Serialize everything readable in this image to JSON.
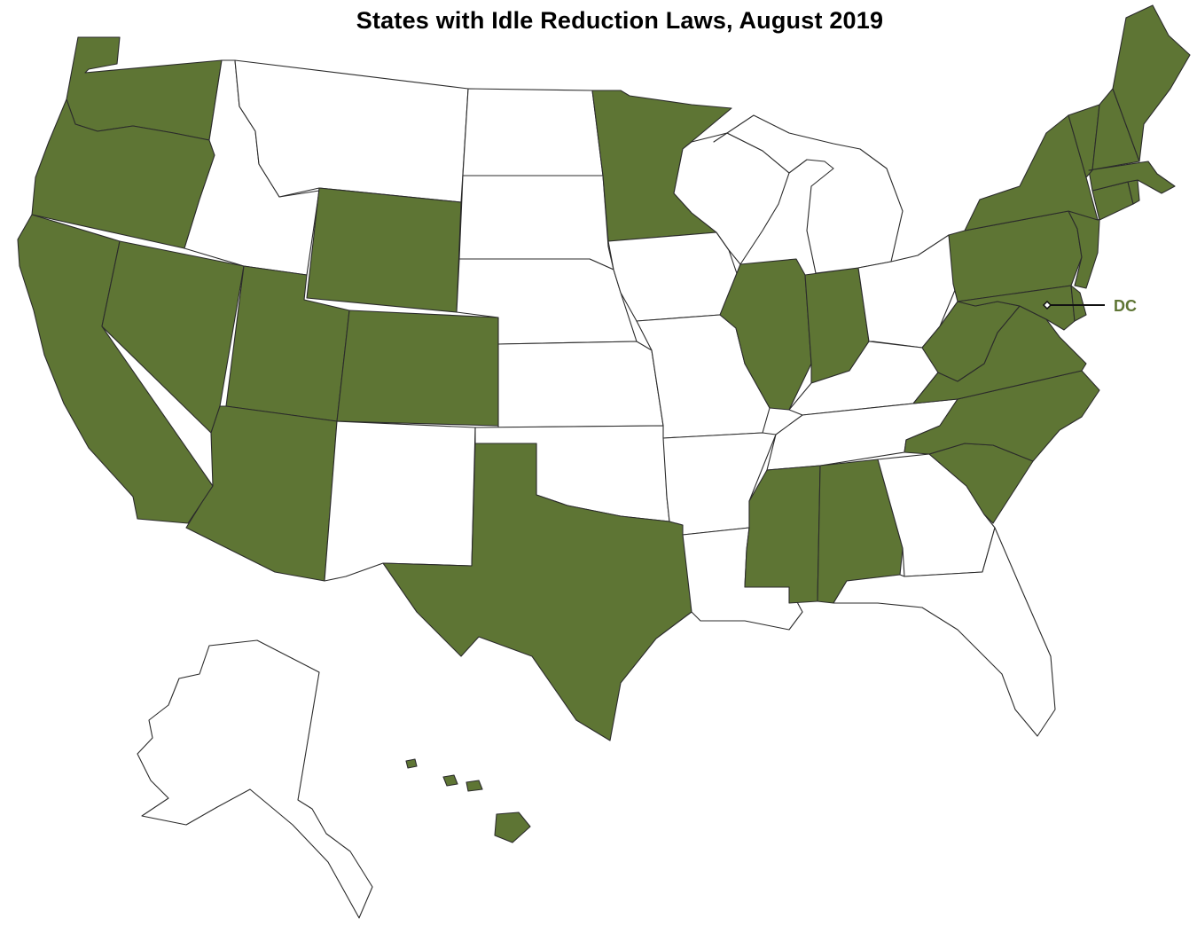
{
  "title": "States with Idle Reduction Laws, August 2019",
  "colors": {
    "law": "#5e7534",
    "no_law": "#ffffff",
    "border": "#2b2b2b",
    "dc_label": "#5e7534"
  },
  "dc_label": "DC",
  "states_with_laws": [
    "WA",
    "OR",
    "CA",
    "NV",
    "UT",
    "AZ",
    "WY",
    "CO",
    "TX",
    "MN",
    "IL",
    "IN",
    "MS",
    "AL",
    "SC",
    "NC",
    "VA",
    "WV",
    "MD",
    "DE",
    "NJ",
    "PA",
    "NY",
    "CT",
    "RI",
    "MA",
    "VT",
    "NH",
    "ME",
    "HI",
    "DC"
  ],
  "states_without_laws": [
    "ID",
    "MT",
    "ND",
    "SD",
    "NE",
    "KS",
    "OK",
    "NM",
    "IA",
    "MO",
    "AR",
    "LA",
    "WI",
    "MI",
    "OH",
    "KY",
    "TN",
    "GA",
    "FL",
    "AK"
  ]
}
